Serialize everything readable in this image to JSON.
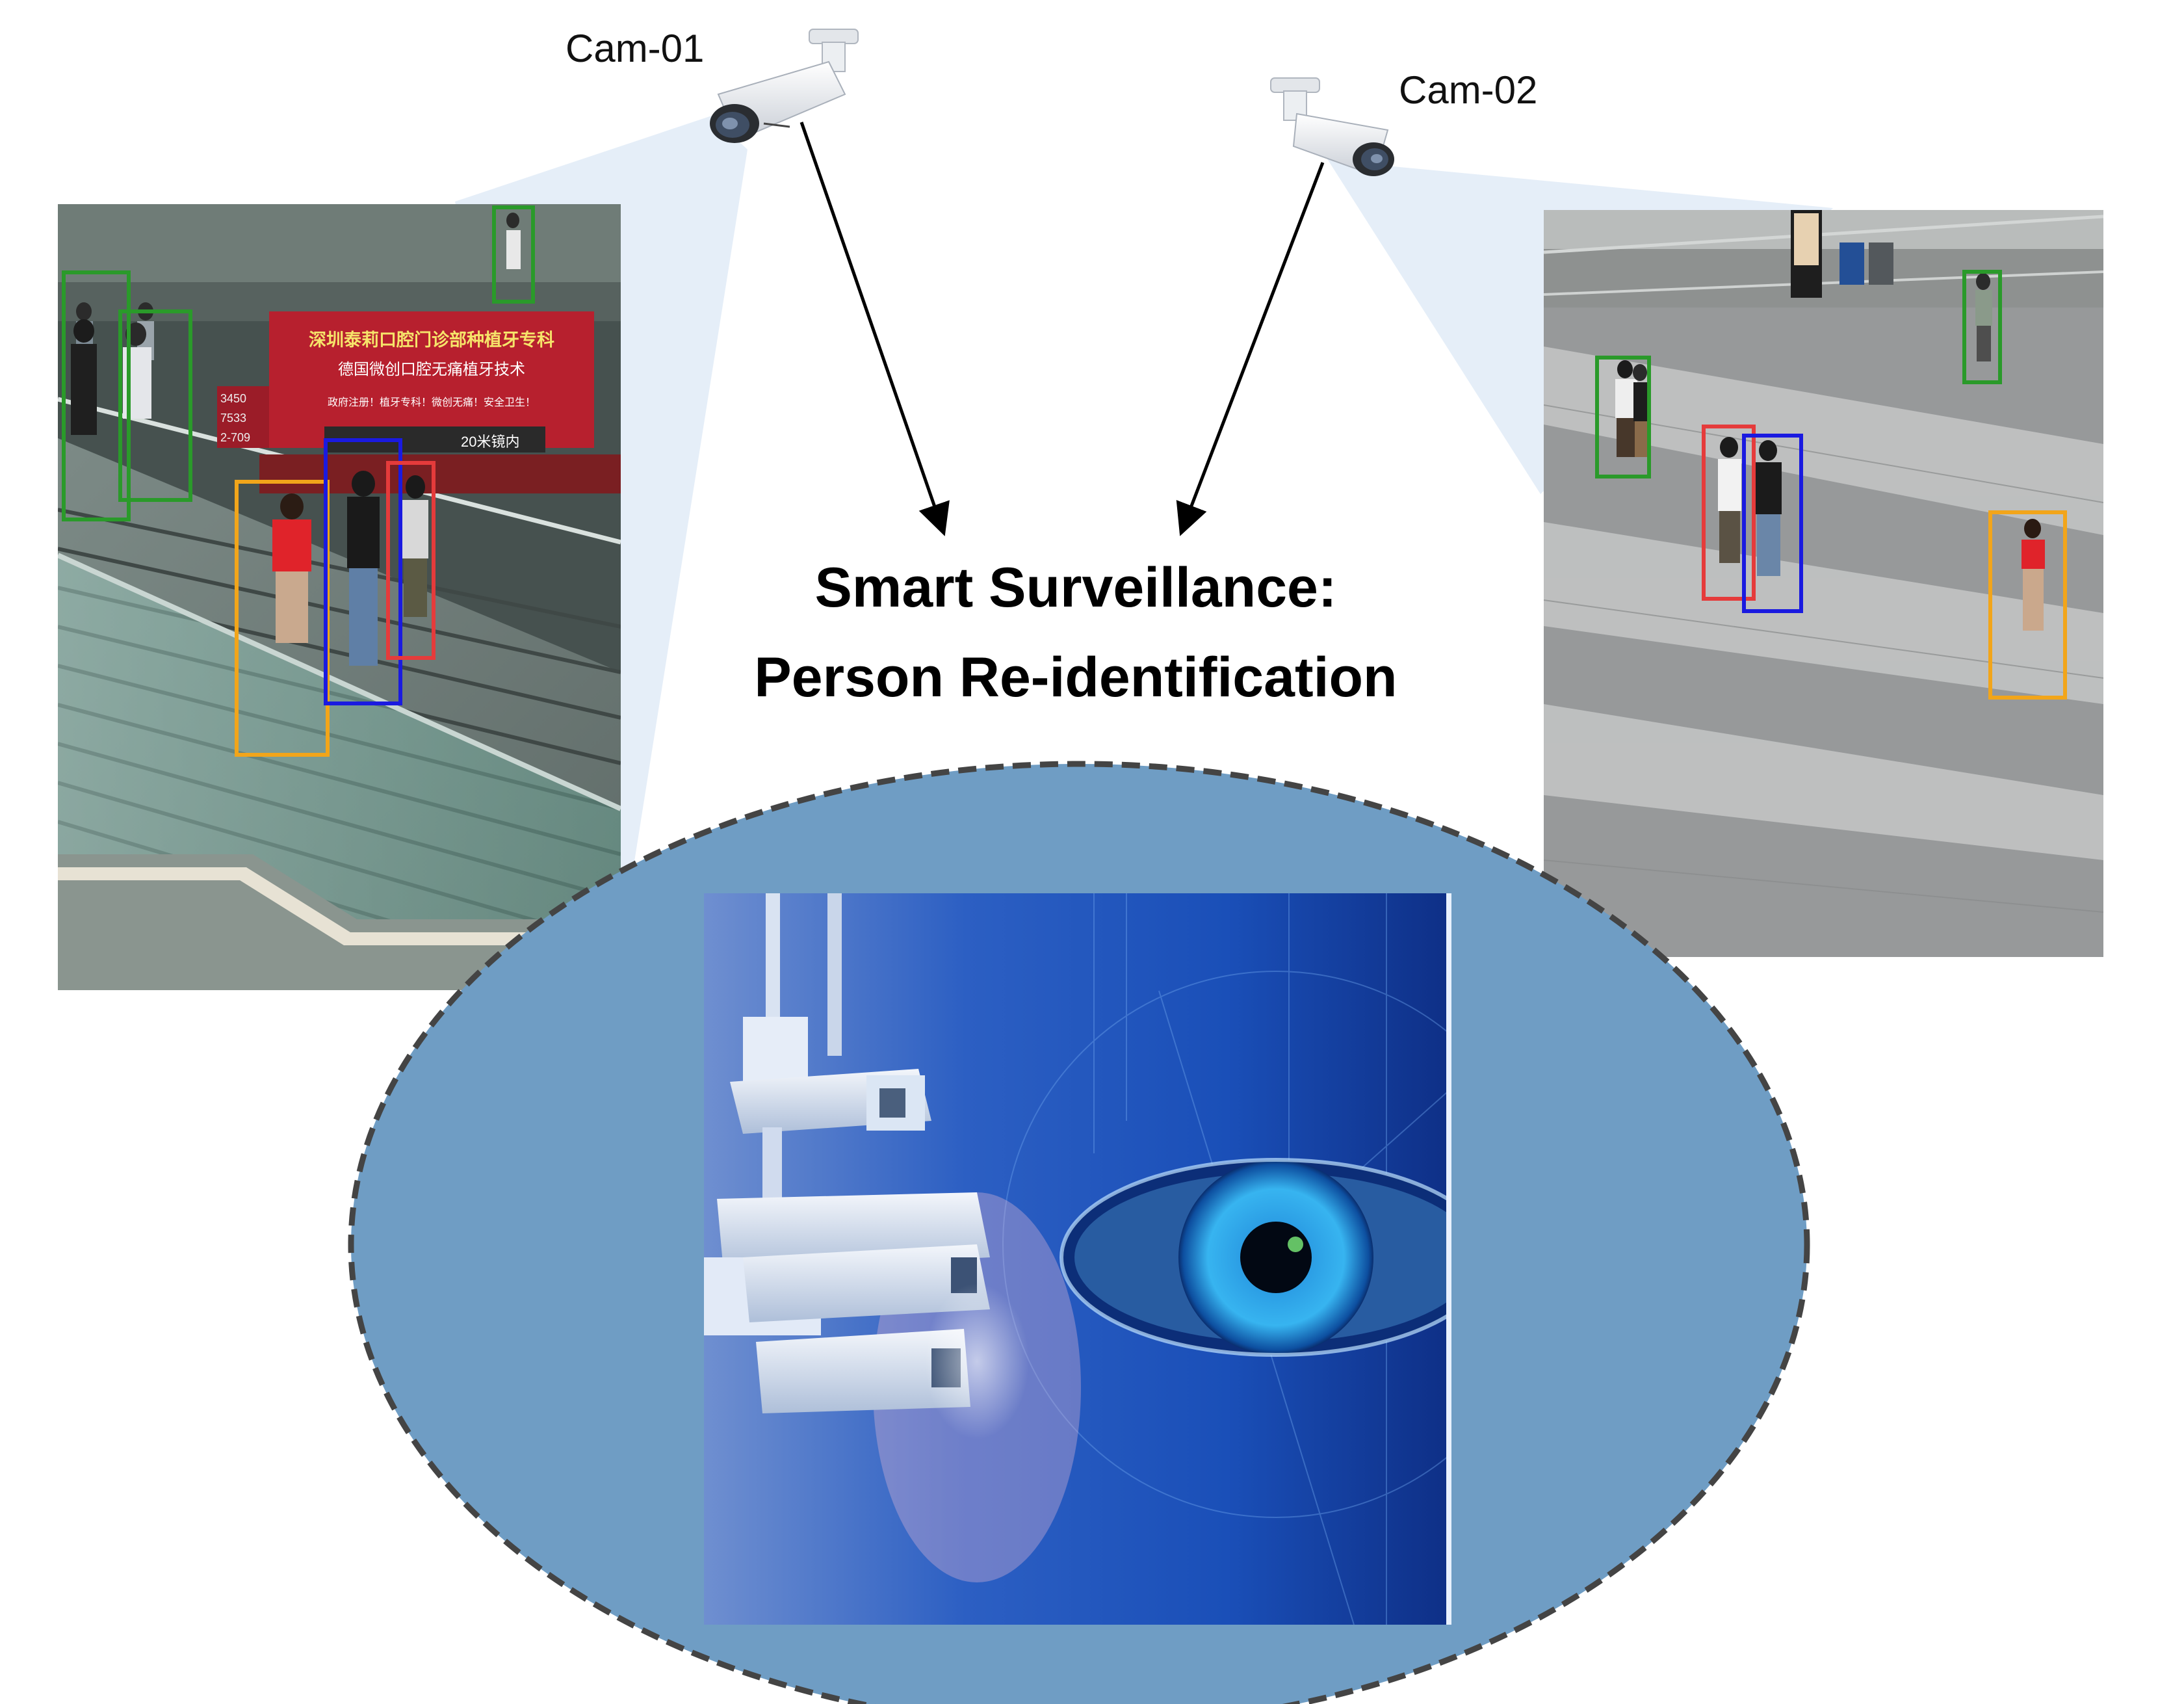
{
  "cameras": [
    {
      "label": "Cam-01"
    },
    {
      "label": "Cam-02"
    }
  ],
  "title": {
    "line1": "Smart Surveillance:",
    "line2": "Person Re-identification"
  },
  "cam01_scene": {
    "sign_line1": "深圳泰莉口腔门诊部种植牙专科",
    "sign_line2": "德国微创口腔无痛植牙技术",
    "sign_line3": "政府注册！植牙专科！微创无痛！安全卫生！",
    "sign_line4": "20米镜内",
    "sign_phone1": "3450",
    "sign_phone2": "7533",
    "sign_phone3": "2-709"
  },
  "colors": {
    "green_box": "#2a9a2a",
    "blue_box": "#1a1ae0",
    "red_box": "#e53b3b",
    "orange_box": "#f2a51a",
    "ellipse_fill": "#6f9dc4",
    "ellipse_stroke": "#444444",
    "fov_cone": "#dce8f6"
  }
}
